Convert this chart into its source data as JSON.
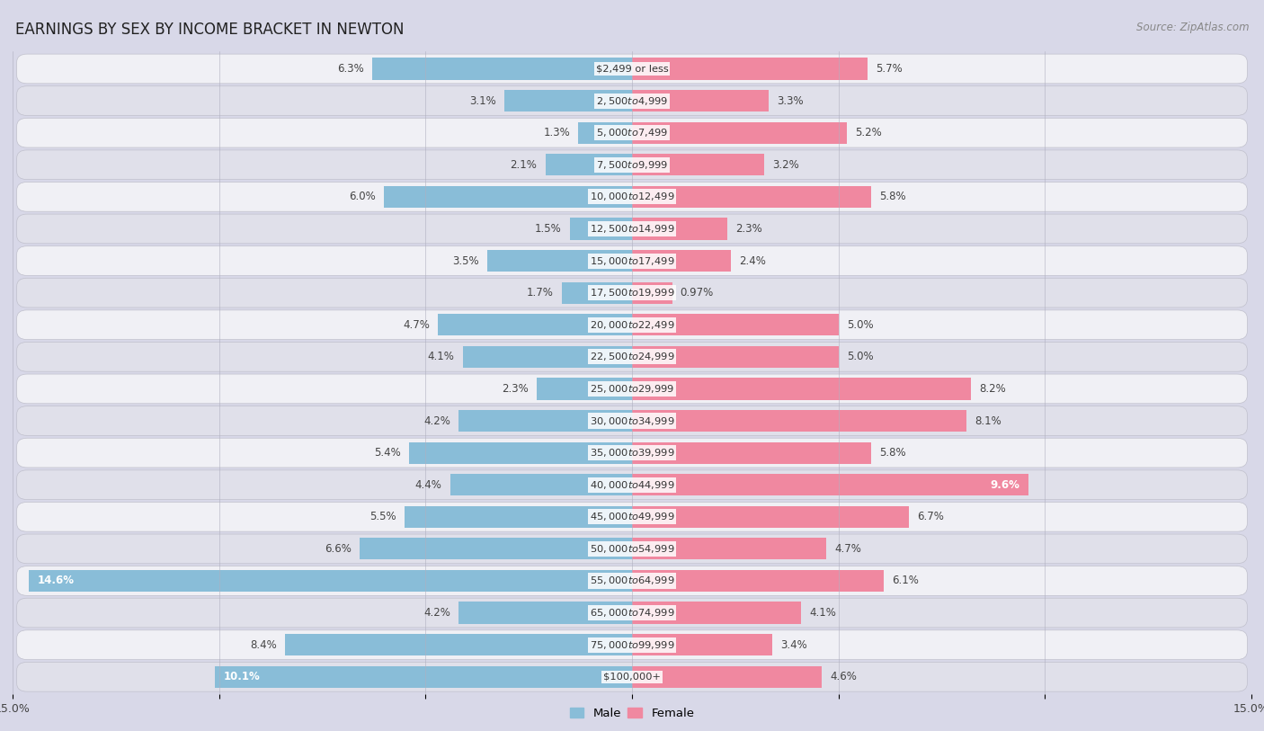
{
  "title": "EARNINGS BY SEX BY INCOME BRACKET IN NEWTON",
  "source": "Source: ZipAtlas.com",
  "categories": [
    "$2,499 or less",
    "$2,500 to $4,999",
    "$5,000 to $7,499",
    "$7,500 to $9,999",
    "$10,000 to $12,499",
    "$12,500 to $14,999",
    "$15,000 to $17,499",
    "$17,500 to $19,999",
    "$20,000 to $22,499",
    "$22,500 to $24,999",
    "$25,000 to $29,999",
    "$30,000 to $34,999",
    "$35,000 to $39,999",
    "$40,000 to $44,999",
    "$45,000 to $49,999",
    "$50,000 to $54,999",
    "$55,000 to $64,999",
    "$65,000 to $74,999",
    "$75,000 to $99,999",
    "$100,000+"
  ],
  "male_values": [
    6.3,
    3.1,
    1.3,
    2.1,
    6.0,
    1.5,
    3.5,
    1.7,
    4.7,
    4.1,
    2.3,
    4.2,
    5.4,
    4.4,
    5.5,
    6.6,
    14.6,
    4.2,
    8.4,
    10.1
  ],
  "female_values": [
    5.7,
    3.3,
    5.2,
    3.2,
    5.8,
    2.3,
    2.4,
    0.97,
    5.0,
    5.0,
    8.2,
    8.1,
    5.8,
    9.6,
    6.7,
    4.7,
    6.1,
    4.1,
    3.4,
    4.6
  ],
  "male_color": "#89bdd8",
  "female_color": "#f088a0",
  "male_label": "Male",
  "female_label": "Female",
  "xlim": 15.0,
  "bar_height": 0.68,
  "row_colors": [
    "#f0f0f5",
    "#e0e0ea"
  ],
  "title_fontsize": 12,
  "value_fontsize": 8.5,
  "category_fontsize": 8.2,
  "tick_fontsize": 9,
  "bg_color": "#d8d8e8"
}
